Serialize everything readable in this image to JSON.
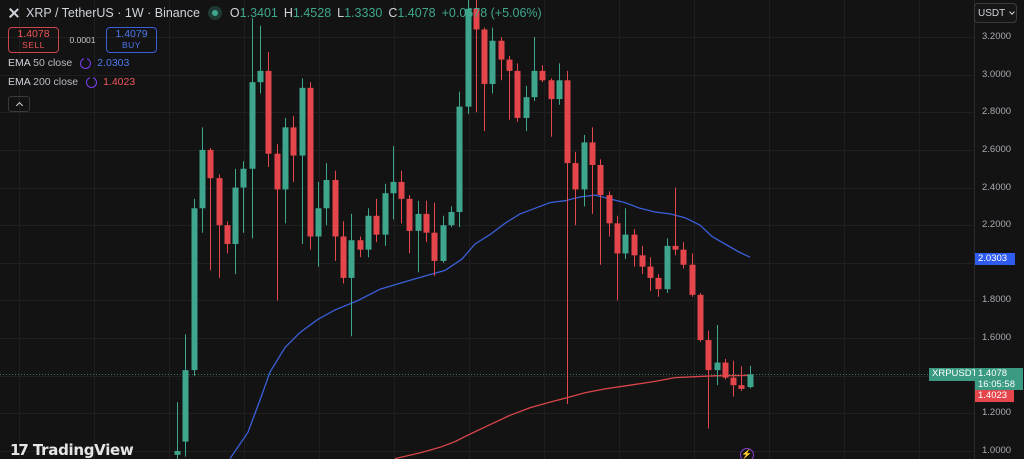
{
  "header": {
    "symbol_title": "XRP / TetherUS · 1W · Binance",
    "ohlc": {
      "o_label": "O",
      "o": "1.3401",
      "h_label": "H",
      "h": "1.4528",
      "l_label": "L",
      "l": "1.3330",
      "c_label": "C",
      "c": "1.4078"
    },
    "change": "+0.0678 (+5.06%)"
  },
  "trade": {
    "sell_price": "1.4078",
    "sell_label": "SELL",
    "spread": "0.0001",
    "buy_price": "1.4079",
    "buy_label": "BUY"
  },
  "indicators": [
    {
      "name": "EMA",
      "params": "50 close",
      "value": "2.0303",
      "color": "#3a5fd8"
    },
    {
      "name": "EMA",
      "params": "200 close",
      "value": "1.4023",
      "color": "#e5464c"
    }
  ],
  "currency_selector": "USDT",
  "price_axis": {
    "labels": [
      "3.2000",
      "3.0000",
      "2.8000",
      "2.6000",
      "2.4000",
      "2.2000",
      "2.0000",
      "1.8000",
      "1.6000",
      "1.4000",
      "1.2000",
      "1.0000"
    ],
    "ema50_badge": "2.0303",
    "symbol_badge": "XRPUSDT",
    "last_price_badge": "1.4078",
    "countdown": "16:05:58",
    "ema200_badge": "1.4023"
  },
  "branding": {
    "logo_text": "TradingView"
  },
  "colors": {
    "up": "#3fa68e",
    "down": "#e5464c",
    "ema50": "#3a5fd8",
    "ema200": "#d9464b",
    "background": "#131313",
    "grid": "#1f1f1f"
  },
  "chart_data": {
    "type": "candlestick",
    "title": "XRP / TetherUS · 1W · Binance",
    "ylabel": "USDT",
    "ylim": [
      0.96,
      3.4
    ],
    "grid": true,
    "series": [
      {
        "name": "XRPUSDT",
        "candles": [
          {
            "o": 0.98,
            "h": 1.26,
            "l": 0.95,
            "c": 1.0
          },
          {
            "o": 1.05,
            "h": 1.62,
            "l": 0.97,
            "c": 1.43
          },
          {
            "o": 1.43,
            "h": 2.34,
            "l": 1.4,
            "c": 2.29
          },
          {
            "o": 2.29,
            "h": 2.72,
            "l": 2.16,
            "c": 2.6
          },
          {
            "o": 2.6,
            "h": 2.61,
            "l": 1.96,
            "c": 2.45
          },
          {
            "o": 2.45,
            "h": 2.47,
            "l": 1.92,
            "c": 2.2
          },
          {
            "o": 2.2,
            "h": 2.22,
            "l": 2.05,
            "c": 2.1
          },
          {
            "o": 2.1,
            "h": 2.5,
            "l": 1.94,
            "c": 2.4
          },
          {
            "o": 2.4,
            "h": 2.54,
            "l": 2.16,
            "c": 2.5
          },
          {
            "o": 2.5,
            "h": 3.3,
            "l": 2.13,
            "c": 2.96
          },
          {
            "o": 2.96,
            "h": 3.26,
            "l": 2.9,
            "c": 3.02
          },
          {
            "o": 3.02,
            "h": 3.12,
            "l": 2.51,
            "c": 2.58
          },
          {
            "o": 2.58,
            "h": 2.63,
            "l": 1.8,
            "c": 2.39
          },
          {
            "o": 2.39,
            "h": 2.77,
            "l": 2.21,
            "c": 2.72
          },
          {
            "o": 2.72,
            "h": 2.78,
            "l": 2.43,
            "c": 2.57
          },
          {
            "o": 2.57,
            "h": 2.98,
            "l": 2.1,
            "c": 2.93
          },
          {
            "o": 2.93,
            "h": 2.96,
            "l": 2.07,
            "c": 2.14
          },
          {
            "o": 2.14,
            "h": 2.43,
            "l": 1.98,
            "c": 2.29
          },
          {
            "o": 2.29,
            "h": 2.53,
            "l": 2.2,
            "c": 2.44
          },
          {
            "o": 2.44,
            "h": 2.49,
            "l": 2.01,
            "c": 2.14
          },
          {
            "o": 2.14,
            "h": 2.22,
            "l": 1.89,
            "c": 1.92
          },
          {
            "o": 1.92,
            "h": 2.26,
            "l": 1.61,
            "c": 2.12
          },
          {
            "o": 2.12,
            "h": 2.14,
            "l": 2.03,
            "c": 2.07
          },
          {
            "o": 2.07,
            "h": 2.29,
            "l": 2.03,
            "c": 2.25
          },
          {
            "o": 2.25,
            "h": 2.34,
            "l": 2.11,
            "c": 2.15
          },
          {
            "o": 2.15,
            "h": 2.42,
            "l": 2.09,
            "c": 2.37
          },
          {
            "o": 2.37,
            "h": 2.62,
            "l": 2.23,
            "c": 2.43
          },
          {
            "o": 2.43,
            "h": 2.49,
            "l": 2.21,
            "c": 2.34
          },
          {
            "o": 2.34,
            "h": 2.36,
            "l": 2.05,
            "c": 2.17
          },
          {
            "o": 2.17,
            "h": 2.33,
            "l": 1.95,
            "c": 2.26
          },
          {
            "o": 2.26,
            "h": 2.33,
            "l": 2.11,
            "c": 2.16
          },
          {
            "o": 2.16,
            "h": 2.32,
            "l": 1.93,
            "c": 2.01
          },
          {
            "o": 2.01,
            "h": 2.25,
            "l": 2.0,
            "c": 2.2
          },
          {
            "o": 2.2,
            "h": 2.3,
            "l": 2.19,
            "c": 2.27
          },
          {
            "o": 2.27,
            "h": 2.91,
            "l": 2.19,
            "c": 2.83
          },
          {
            "o": 2.83,
            "h": 3.45,
            "l": 2.79,
            "c": 3.35
          },
          {
            "o": 3.35,
            "h": 3.4,
            "l": 2.8,
            "c": 3.24
          },
          {
            "o": 3.24,
            "h": 3.25,
            "l": 2.7,
            "c": 2.95
          },
          {
            "o": 2.95,
            "h": 3.25,
            "l": 2.9,
            "c": 3.18
          },
          {
            "o": 3.18,
            "h": 3.2,
            "l": 2.97,
            "c": 3.08
          },
          {
            "o": 3.08,
            "h": 3.1,
            "l": 2.76,
            "c": 3.02
          },
          {
            "o": 3.02,
            "h": 3.06,
            "l": 2.75,
            "c": 2.77
          },
          {
            "o": 2.77,
            "h": 2.94,
            "l": 2.7,
            "c": 2.88
          },
          {
            "o": 2.88,
            "h": 3.2,
            "l": 2.86,
            "c": 3.02
          },
          {
            "o": 3.02,
            "h": 3.05,
            "l": 2.96,
            "c": 2.97
          },
          {
            "o": 2.97,
            "h": 2.98,
            "l": 2.67,
            "c": 2.87
          },
          {
            "o": 2.87,
            "h": 3.06,
            "l": 2.84,
            "c": 2.97
          },
          {
            "o": 2.97,
            "h": 3.02,
            "l": 1.25,
            "c": 2.53
          },
          {
            "o": 2.53,
            "h": 2.59,
            "l": 2.2,
            "c": 2.39
          },
          {
            "o": 2.39,
            "h": 2.68,
            "l": 2.3,
            "c": 2.64
          },
          {
            "o": 2.64,
            "h": 2.72,
            "l": 2.26,
            "c": 2.52
          },
          {
            "o": 2.52,
            "h": 2.55,
            "l": 1.99,
            "c": 2.36
          },
          {
            "o": 2.36,
            "h": 2.38,
            "l": 2.14,
            "c": 2.21
          },
          {
            "o": 2.21,
            "h": 2.25,
            "l": 1.8,
            "c": 2.05
          },
          {
            "o": 2.05,
            "h": 2.29,
            "l": 2.02,
            "c": 2.15
          },
          {
            "o": 2.15,
            "h": 2.18,
            "l": 1.98,
            "c": 2.04
          },
          {
            "o": 2.04,
            "h": 2.09,
            "l": 1.94,
            "c": 1.98
          },
          {
            "o": 1.98,
            "h": 2.03,
            "l": 1.85,
            "c": 1.92
          },
          {
            "o": 1.92,
            "h": 1.94,
            "l": 1.82,
            "c": 1.86
          },
          {
            "o": 1.86,
            "h": 2.13,
            "l": 1.84,
            "c": 2.09
          },
          {
            "o": 2.09,
            "h": 2.4,
            "l": 2.04,
            "c": 2.07
          },
          {
            "o": 2.07,
            "h": 2.11,
            "l": 1.97,
            "c": 1.99
          },
          {
            "o": 1.99,
            "h": 2.05,
            "l": 1.82,
            "c": 1.83
          },
          {
            "o": 1.83,
            "h": 1.84,
            "l": 1.58,
            "c": 1.59
          },
          {
            "o": 1.59,
            "h": 1.64,
            "l": 1.12,
            "c": 1.43
          },
          {
            "o": 1.43,
            "h": 1.67,
            "l": 1.35,
            "c": 1.47
          },
          {
            "o": 1.47,
            "h": 1.49,
            "l": 1.38,
            "c": 1.39
          },
          {
            "o": 1.39,
            "h": 1.48,
            "l": 1.29,
            "c": 1.35
          },
          {
            "o": 1.35,
            "h": 1.45,
            "l": 1.32,
            "c": 1.33
          },
          {
            "o": 1.3401,
            "h": 1.4528,
            "l": 1.333,
            "c": 1.4078
          }
        ]
      },
      {
        "name": "EMA 50 close",
        "points": [
          [
            230,
            0.96
          ],
          [
            248,
            1.1
          ],
          [
            262,
            1.3
          ],
          [
            270,
            1.42
          ],
          [
            285,
            1.55
          ],
          [
            300,
            1.63
          ],
          [
            318,
            1.7
          ],
          [
            335,
            1.75
          ],
          [
            358,
            1.8
          ],
          [
            380,
            1.86
          ],
          [
            405,
            1.9
          ],
          [
            425,
            1.93
          ],
          [
            445,
            1.96
          ],
          [
            462,
            2.02
          ],
          [
            475,
            2.1
          ],
          [
            490,
            2.15
          ],
          [
            505,
            2.21
          ],
          [
            520,
            2.26
          ],
          [
            535,
            2.29
          ],
          [
            550,
            2.32
          ],
          [
            565,
            2.33
          ],
          [
            580,
            2.35
          ],
          [
            595,
            2.36
          ],
          [
            610,
            2.34
          ],
          [
            625,
            2.32
          ],
          [
            640,
            2.29
          ],
          [
            655,
            2.27
          ],
          [
            670,
            2.26
          ],
          [
            685,
            2.24
          ],
          [
            700,
            2.2
          ],
          [
            712,
            2.14
          ],
          [
            725,
            2.1
          ],
          [
            738,
            2.06
          ],
          [
            750,
            2.03
          ]
        ]
      },
      {
        "name": "EMA 200 close",
        "points": [
          [
            395,
            0.96
          ],
          [
            420,
            0.99
          ],
          [
            440,
            1.02
          ],
          [
            455,
            1.05
          ],
          [
            470,
            1.09
          ],
          [
            490,
            1.14
          ],
          [
            510,
            1.19
          ],
          [
            530,
            1.23
          ],
          [
            550,
            1.26
          ],
          [
            565,
            1.28
          ],
          [
            585,
            1.31
          ],
          [
            605,
            1.33
          ],
          [
            630,
            1.35
          ],
          [
            655,
            1.37
          ],
          [
            675,
            1.39
          ],
          [
            695,
            1.395
          ],
          [
            715,
            1.4
          ],
          [
            735,
            1.401
          ],
          [
            750,
            1.4023
          ]
        ]
      }
    ],
    "last_price": 1.4078,
    "annotations": [
      "XRPUSDT 1.4078",
      "16:05:58",
      "EMA50 2.0303",
      "EMA200 1.4023"
    ]
  }
}
